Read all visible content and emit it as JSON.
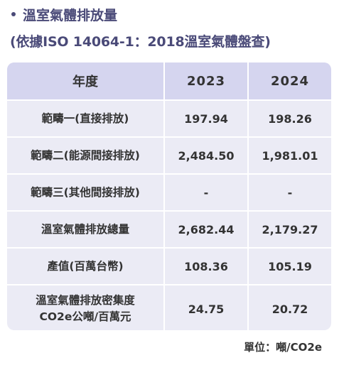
{
  "heading": {
    "title": "溫室氣體排放量",
    "subtitle": "(依據ISO 14064-1：2018溫室氣體盤查)"
  },
  "table": {
    "headers": [
      "年度",
      "2023",
      "2024"
    ],
    "rows": [
      {
        "label": [
          "範疇一(直接排放)"
        ],
        "v2023": "197.94",
        "v2024": "198.26"
      },
      {
        "label": [
          "範疇二(能源間接排放)"
        ],
        "v2023": "2,484.50",
        "v2024": "1,981.01"
      },
      {
        "label": [
          "範疇三(其他間接排放)"
        ],
        "v2023": "-",
        "v2024": "-"
      },
      {
        "label": [
          "溫室氣體排放總量"
        ],
        "v2023": "2,682.44",
        "v2024": "2,179.27"
      },
      {
        "label": [
          "產值(百萬台幣)"
        ],
        "v2023": "108.36",
        "v2024": "105.19"
      },
      {
        "label": [
          "溫室氣體排放密集度",
          "CO2e公噸/百萬元"
        ],
        "v2023": "24.75",
        "v2024": "20.72"
      }
    ]
  },
  "unit": "單位：噸/CO2e",
  "colors": {
    "heading": "#4a4a78",
    "header_bg": "#d5d5ef",
    "body_bg": "#ebebf5"
  }
}
